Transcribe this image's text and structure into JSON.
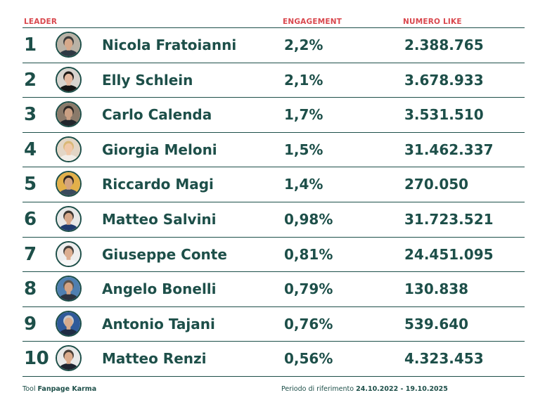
{
  "chart_data": {
    "type": "table",
    "columns": [
      "LEADER",
      "ENGAGEMENT",
      "NUMERO LIKE"
    ],
    "rows": [
      {
        "rank": "1",
        "leader": "Nicola Fratoianni",
        "engagement": "2,2%",
        "likes": "2.388.765",
        "engagement_value": 2.2,
        "likes_value": 2388765,
        "avatar_bg": "#b9b2a6",
        "avatar_skin": "#d6a98b",
        "avatar_hair": "#3a3a3a",
        "avatar_shirt": "#2f3944"
      },
      {
        "rank": "2",
        "leader": "Elly Schlein",
        "engagement": "2,1%",
        "likes": "3.678.933",
        "engagement_value": 2.1,
        "likes_value": 3678933,
        "avatar_bg": "#d8d4cf",
        "avatar_skin": "#e4b9a0",
        "avatar_hair": "#1f1a17",
        "avatar_shirt": "#151515"
      },
      {
        "rank": "3",
        "leader": "Carlo Calenda",
        "engagement": "1,7%",
        "likes": "3.531.510",
        "engagement_value": 1.7,
        "likes_value": 3531510,
        "avatar_bg": "#8a7a6a",
        "avatar_skin": "#caa083",
        "avatar_hair": "#2c2724",
        "avatar_shirt": "#22262c"
      },
      {
        "rank": "4",
        "leader": "Giorgia Meloni",
        "engagement": "1,5%",
        "likes": "31.462.337",
        "engagement_value": 1.5,
        "likes_value": 31462337,
        "avatar_bg": "#e3d6c6",
        "avatar_skin": "#f0c8a8",
        "avatar_hair": "#d9b877",
        "avatar_shirt": "#f2eee8"
      },
      {
        "rank": "5",
        "leader": "Riccardo Magi",
        "engagement": "1,4%",
        "likes": "270.050",
        "engagement_value": 1.4,
        "likes_value": 270050,
        "avatar_bg": "#e2b04a",
        "avatar_skin": "#d4a47e",
        "avatar_hair": "#2d2520",
        "avatar_shirt": "#3a4a5c"
      },
      {
        "rank": "6",
        "leader": "Matteo Salvini",
        "engagement": "0,98%",
        "likes": "31.723.521",
        "engagement_value": 0.98,
        "likes_value": 31723521,
        "avatar_bg": "#e8e8e8",
        "avatar_skin": "#d7a88a",
        "avatar_hair": "#3b3531",
        "avatar_shirt": "#1f3a6e"
      },
      {
        "rank": "7",
        "leader": "Giuseppe Conte",
        "engagement": "0,81%",
        "likes": "24.451.095",
        "engagement_value": 0.81,
        "likes_value": 24451095,
        "avatar_bg": "#eeeeee",
        "avatar_skin": "#dcae90",
        "avatar_hair": "#45403c",
        "avatar_shirt": "#f7f7f7"
      },
      {
        "rank": "8",
        "leader": "Angelo Bonelli",
        "engagement": "0,79%",
        "likes": "130.838",
        "engagement_value": 0.79,
        "likes_value": 130838,
        "avatar_bg": "#4f7fb0",
        "avatar_skin": "#d3a384",
        "avatar_hair": "#5a524b",
        "avatar_shirt": "#2b3340"
      },
      {
        "rank": "9",
        "leader": "Antonio Tajani",
        "engagement": "0,76%",
        "likes": "539.640",
        "engagement_value": 0.76,
        "likes_value": 539640,
        "avatar_bg": "#2f5a9a",
        "avatar_skin": "#d8ab8c",
        "avatar_hair": "#c9c9c9",
        "avatar_shirt": "#1f2c44"
      },
      {
        "rank": "10",
        "leader": "Matteo Renzi",
        "engagement": "0,56%",
        "likes": "4.323.453",
        "engagement_value": 0.56,
        "likes_value": 4323453,
        "avatar_bg": "#e9e9e9",
        "avatar_skin": "#dbab8c",
        "avatar_hair": "#4a3f38",
        "avatar_shirt": "#1e2430"
      }
    ]
  },
  "footer": {
    "tool_prefix": "Tool",
    "tool_name": "Fanpage Karma",
    "period_prefix": "Periodo di riferimento",
    "period_range": "24.10.2022 - 19.10.2025"
  },
  "colors": {
    "accent": "#d9484e",
    "text": "#1d4f49"
  }
}
